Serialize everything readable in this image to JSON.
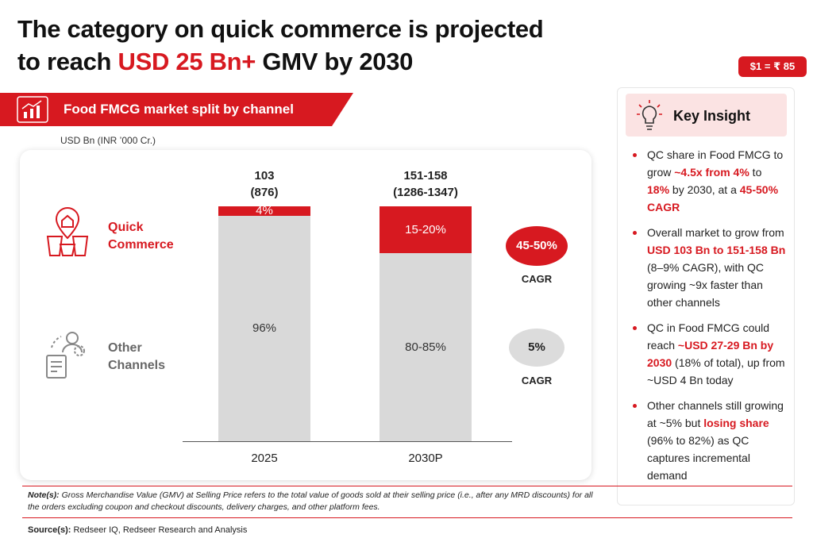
{
  "header": {
    "title_lines": [
      [
        {
          "text": "The category on quick commerce is projected"
        }
      ],
      [
        {
          "text": "to reach "
        },
        {
          "text": "USD 25 Bn+",
          "em": true
        },
        {
          "text": " GMV by 2030"
        }
      ]
    ],
    "badge": "$1 = ₹ 85"
  },
  "section": {
    "title": "Food FMCG market split by channel",
    "unit": "USD Bn (INR ’000 Cr.)"
  },
  "chart_data": {
    "type": "stacked_bar",
    "categories": [
      "2025",
      "2030P"
    ],
    "totals": [
      [
        "103",
        "(876)"
      ],
      [
        "151-158",
        "(1286-1347)"
      ]
    ],
    "series": [
      {
        "name": "Quick Commerce",
        "color": "#d71920",
        "values": [
          4,
          20
        ],
        "value_labels": [
          "4%",
          "15-20%"
        ],
        "cagr": "45-50%",
        "cagr_label": "CAGR",
        "bubble_color": "#d71920"
      },
      {
        "name": "Other Channels",
        "color": "#d9d9d9",
        "values": [
          96,
          80
        ],
        "value_labels": [
          "96%",
          "80-85%"
        ],
        "cagr": "5%",
        "cagr_label": "CAGR",
        "bubble_color": "#dcdcdc"
      }
    ]
  },
  "insight": {
    "title": "Key Insight",
    "bullets": [
      [
        {
          "text": "QC share in Food FMCG to grow "
        },
        {
          "text": "~4.5x from 4%",
          "em": true
        },
        {
          "text": " to "
        },
        {
          "text": "18%",
          "em": true
        },
        {
          "text": " by 2030, at a "
        },
        {
          "text": "45-50% CAGR",
          "em": true
        }
      ],
      [
        {
          "text": "Overall market to grow from "
        },
        {
          "text": "USD 103 Bn to 151-158 Bn",
          "em": true
        },
        {
          "text": " (8–9% CAGR), with QC growing ~9x faster than other channels"
        }
      ],
      [
        {
          "text": "QC in Food FMCG could reach "
        },
        {
          "text": "~USD 27-29 Bn by 2030",
          "em": true
        },
        {
          "text": " (18% of total), up from ~USD 4 Bn today"
        }
      ],
      [
        {
          "text": "Other channels still growing at ~5% but "
        },
        {
          "text": "losing share",
          "em": true
        },
        {
          "text": " (96% to 82%) as QC captures incremental demand"
        }
      ]
    ]
  },
  "footer": {
    "note_label": "Note(s):",
    "note": "Gross Merchandise Value (GMV) at Selling Price refers to the total value of goods sold at their selling price (i.e., after any MRD discounts) for all the orders excluding coupon and checkout discounts, delivery charges, and other platform fees.",
    "source_label": "Source(s):",
    "source": "Redseer IQ, Redseer Research and Analysis"
  }
}
